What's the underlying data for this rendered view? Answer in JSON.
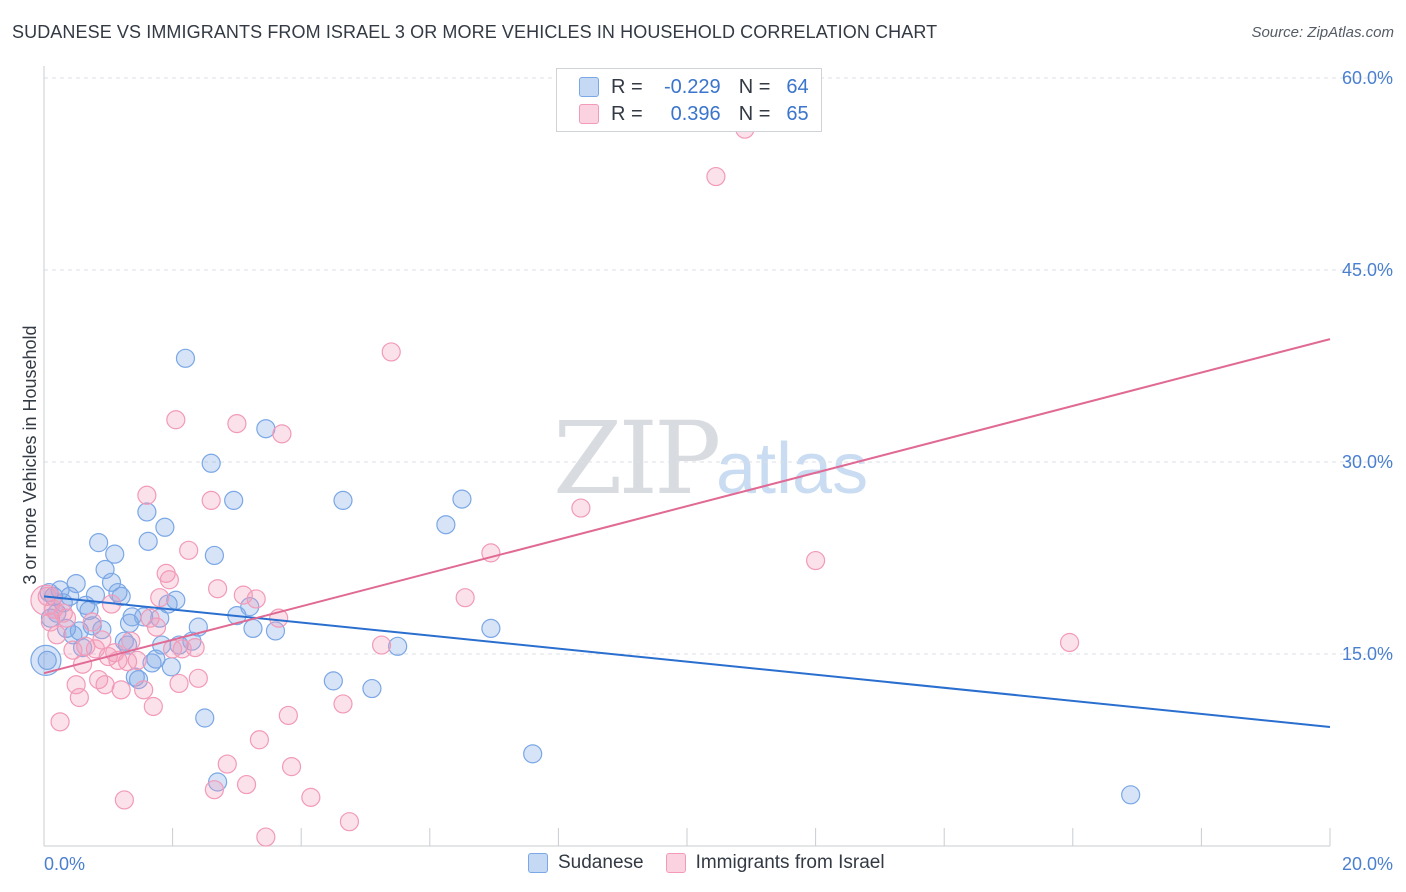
{
  "title": "SUDANESE VS IMMIGRANTS FROM ISRAEL 3 OR MORE VEHICLES IN HOUSEHOLD CORRELATION CHART",
  "source": "Source: ZipAtlas.com",
  "watermark": {
    "part1": "ZIP",
    "part2": "atlas"
  },
  "colors": {
    "blue": "#7aa7e6",
    "pink": "#f29ab8",
    "blue_line": "#2a6fcf",
    "pink_line": "#e06a94",
    "tick": "#4a7fd0"
  },
  "legend": {
    "rows": [
      {
        "r_label": "R =",
        "r_value": "-0.229",
        "n_label": "N =",
        "n_value": "64"
      },
      {
        "r_label": "R =",
        "r_value": "0.396",
        "n_label": "N =",
        "n_value": "65"
      }
    ]
  },
  "bottom_legend": {
    "series1": "Sudanese",
    "series2": "Immigrants from Israel"
  },
  "chart_data": {
    "type": "scatter",
    "title": "SUDANESE VS IMMIGRANTS FROM ISRAEL 3 OR MORE VEHICLES IN HOUSEHOLD CORRELATION CHART",
    "xlabel": "",
    "ylabel": "3 or more Vehicles in Household",
    "xlim": [
      0,
      20
    ],
    "ylim": [
      0,
      60
    ],
    "x_tick_labels": [
      "0.0%",
      "20.0%"
    ],
    "y_ticks": [
      15,
      30,
      45,
      60
    ],
    "y_tick_labels": [
      "15.0%",
      "30.0%",
      "45.0%",
      "60.0%"
    ],
    "series": [
      {
        "name": "Sudanese",
        "trend": {
          "x": [
            0,
            20
          ],
          "y": [
            19.5,
            9.3
          ]
        },
        "points": [
          [
            0.05,
            14.5
          ],
          [
            0.1,
            17.8
          ],
          [
            0.15,
            19.5
          ],
          [
            0.2,
            18.2
          ],
          [
            0.25,
            20.0
          ],
          [
            0.3,
            19.0
          ],
          [
            0.35,
            17.0
          ],
          [
            0.4,
            19.5
          ],
          [
            0.45,
            16.5
          ],
          [
            0.5,
            20.5
          ],
          [
            0.55,
            16.8
          ],
          [
            0.6,
            15.5
          ],
          [
            0.65,
            18.8
          ],
          [
            0.7,
            18.4
          ],
          [
            0.75,
            17.2
          ],
          [
            0.8,
            19.6
          ],
          [
            0.85,
            23.7
          ],
          [
            0.9,
            16.9
          ],
          [
            0.95,
            21.6
          ],
          [
            1.05,
            20.6
          ],
          [
            1.1,
            22.8
          ],
          [
            1.15,
            19.8
          ],
          [
            1.2,
            19.5
          ],
          [
            1.25,
            16.0
          ],
          [
            1.3,
            15.7
          ],
          [
            1.33,
            17.4
          ],
          [
            1.37,
            17.9
          ],
          [
            1.42,
            13.2
          ],
          [
            1.47,
            13.0
          ],
          [
            1.55,
            17.9
          ],
          [
            1.6,
            26.1
          ],
          [
            1.62,
            23.8
          ],
          [
            1.68,
            14.3
          ],
          [
            1.74,
            14.6
          ],
          [
            1.8,
            17.8
          ],
          [
            1.83,
            15.7
          ],
          [
            1.88,
            24.9
          ],
          [
            1.93,
            18.9
          ],
          [
            1.98,
            14.0
          ],
          [
            2.05,
            19.2
          ],
          [
            2.1,
            15.7
          ],
          [
            2.2,
            38.1
          ],
          [
            2.3,
            16.0
          ],
          [
            2.4,
            17.1
          ],
          [
            2.5,
            10.0
          ],
          [
            2.6,
            29.9
          ],
          [
            2.65,
            22.7
          ],
          [
            2.7,
            5.0
          ],
          [
            2.95,
            27.0
          ],
          [
            3.2,
            18.7
          ],
          [
            3.0,
            18.0
          ],
          [
            3.25,
            17.0
          ],
          [
            3.45,
            32.6
          ],
          [
            3.6,
            16.8
          ],
          [
            4.5,
            12.9
          ],
          [
            4.65,
            27.0
          ],
          [
            5.1,
            12.3
          ],
          [
            5.5,
            15.6
          ],
          [
            6.25,
            25.1
          ],
          [
            6.5,
            27.1
          ],
          [
            6.95,
            17.0
          ],
          [
            7.6,
            7.2
          ],
          [
            16.9,
            4.0
          ],
          [
            0.08,
            19.8
          ]
        ]
      },
      {
        "name": "Immigrants from Israel",
        "trend": {
          "x": [
            0,
            20
          ],
          "y": [
            13.5,
            39.6
          ]
        },
        "points": [
          [
            0.05,
            19.5
          ],
          [
            0.1,
            17.5
          ],
          [
            0.15,
            18.5
          ],
          [
            0.2,
            16.5
          ],
          [
            0.25,
            9.7
          ],
          [
            0.3,
            18.2
          ],
          [
            0.35,
            17.8
          ],
          [
            0.45,
            15.3
          ],
          [
            0.5,
            12.6
          ],
          [
            0.55,
            11.6
          ],
          [
            0.6,
            14.2
          ],
          [
            0.65,
            15.6
          ],
          [
            0.75,
            17.5
          ],
          [
            0.8,
            15.4
          ],
          [
            0.85,
            13.0
          ],
          [
            0.9,
            16.1
          ],
          [
            0.95,
            12.6
          ],
          [
            1.0,
            14.8
          ],
          [
            1.05,
            18.9
          ],
          [
            1.1,
            15.1
          ],
          [
            1.15,
            14.5
          ],
          [
            1.2,
            12.2
          ],
          [
            1.25,
            3.6
          ],
          [
            1.3,
            14.4
          ],
          [
            1.35,
            16.0
          ],
          [
            1.45,
            14.5
          ],
          [
            1.55,
            12.2
          ],
          [
            1.6,
            27.4
          ],
          [
            1.65,
            17.8
          ],
          [
            1.7,
            10.9
          ],
          [
            1.75,
            17.1
          ],
          [
            1.8,
            19.4
          ],
          [
            1.9,
            21.3
          ],
          [
            1.95,
            20.8
          ],
          [
            2.0,
            15.4
          ],
          [
            2.05,
            33.3
          ],
          [
            2.1,
            12.7
          ],
          [
            2.15,
            15.4
          ],
          [
            2.25,
            23.1
          ],
          [
            2.35,
            15.5
          ],
          [
            2.4,
            13.1
          ],
          [
            2.6,
            27.0
          ],
          [
            2.65,
            4.4
          ],
          [
            2.7,
            20.1
          ],
          [
            2.85,
            6.4
          ],
          [
            3.0,
            33.0
          ],
          [
            3.1,
            19.6
          ],
          [
            3.15,
            4.8
          ],
          [
            3.3,
            19.3
          ],
          [
            3.35,
            8.3
          ],
          [
            3.45,
            0.7
          ],
          [
            3.65,
            17.8
          ],
          [
            3.7,
            32.2
          ],
          [
            3.8,
            10.2
          ],
          [
            3.85,
            6.2
          ],
          [
            4.15,
            3.8
          ],
          [
            4.65,
            11.1
          ],
          [
            4.75,
            1.9
          ],
          [
            5.25,
            15.7
          ],
          [
            5.4,
            38.6
          ],
          [
            6.55,
            19.4
          ],
          [
            6.95,
            22.9
          ],
          [
            8.35,
            26.4
          ],
          [
            10.45,
            52.3
          ],
          [
            10.9,
            56.0
          ]
        ],
        "extra_points": [
          [
            15.95,
            15.9
          ],
          [
            12.0,
            22.3
          ]
        ]
      }
    ]
  }
}
